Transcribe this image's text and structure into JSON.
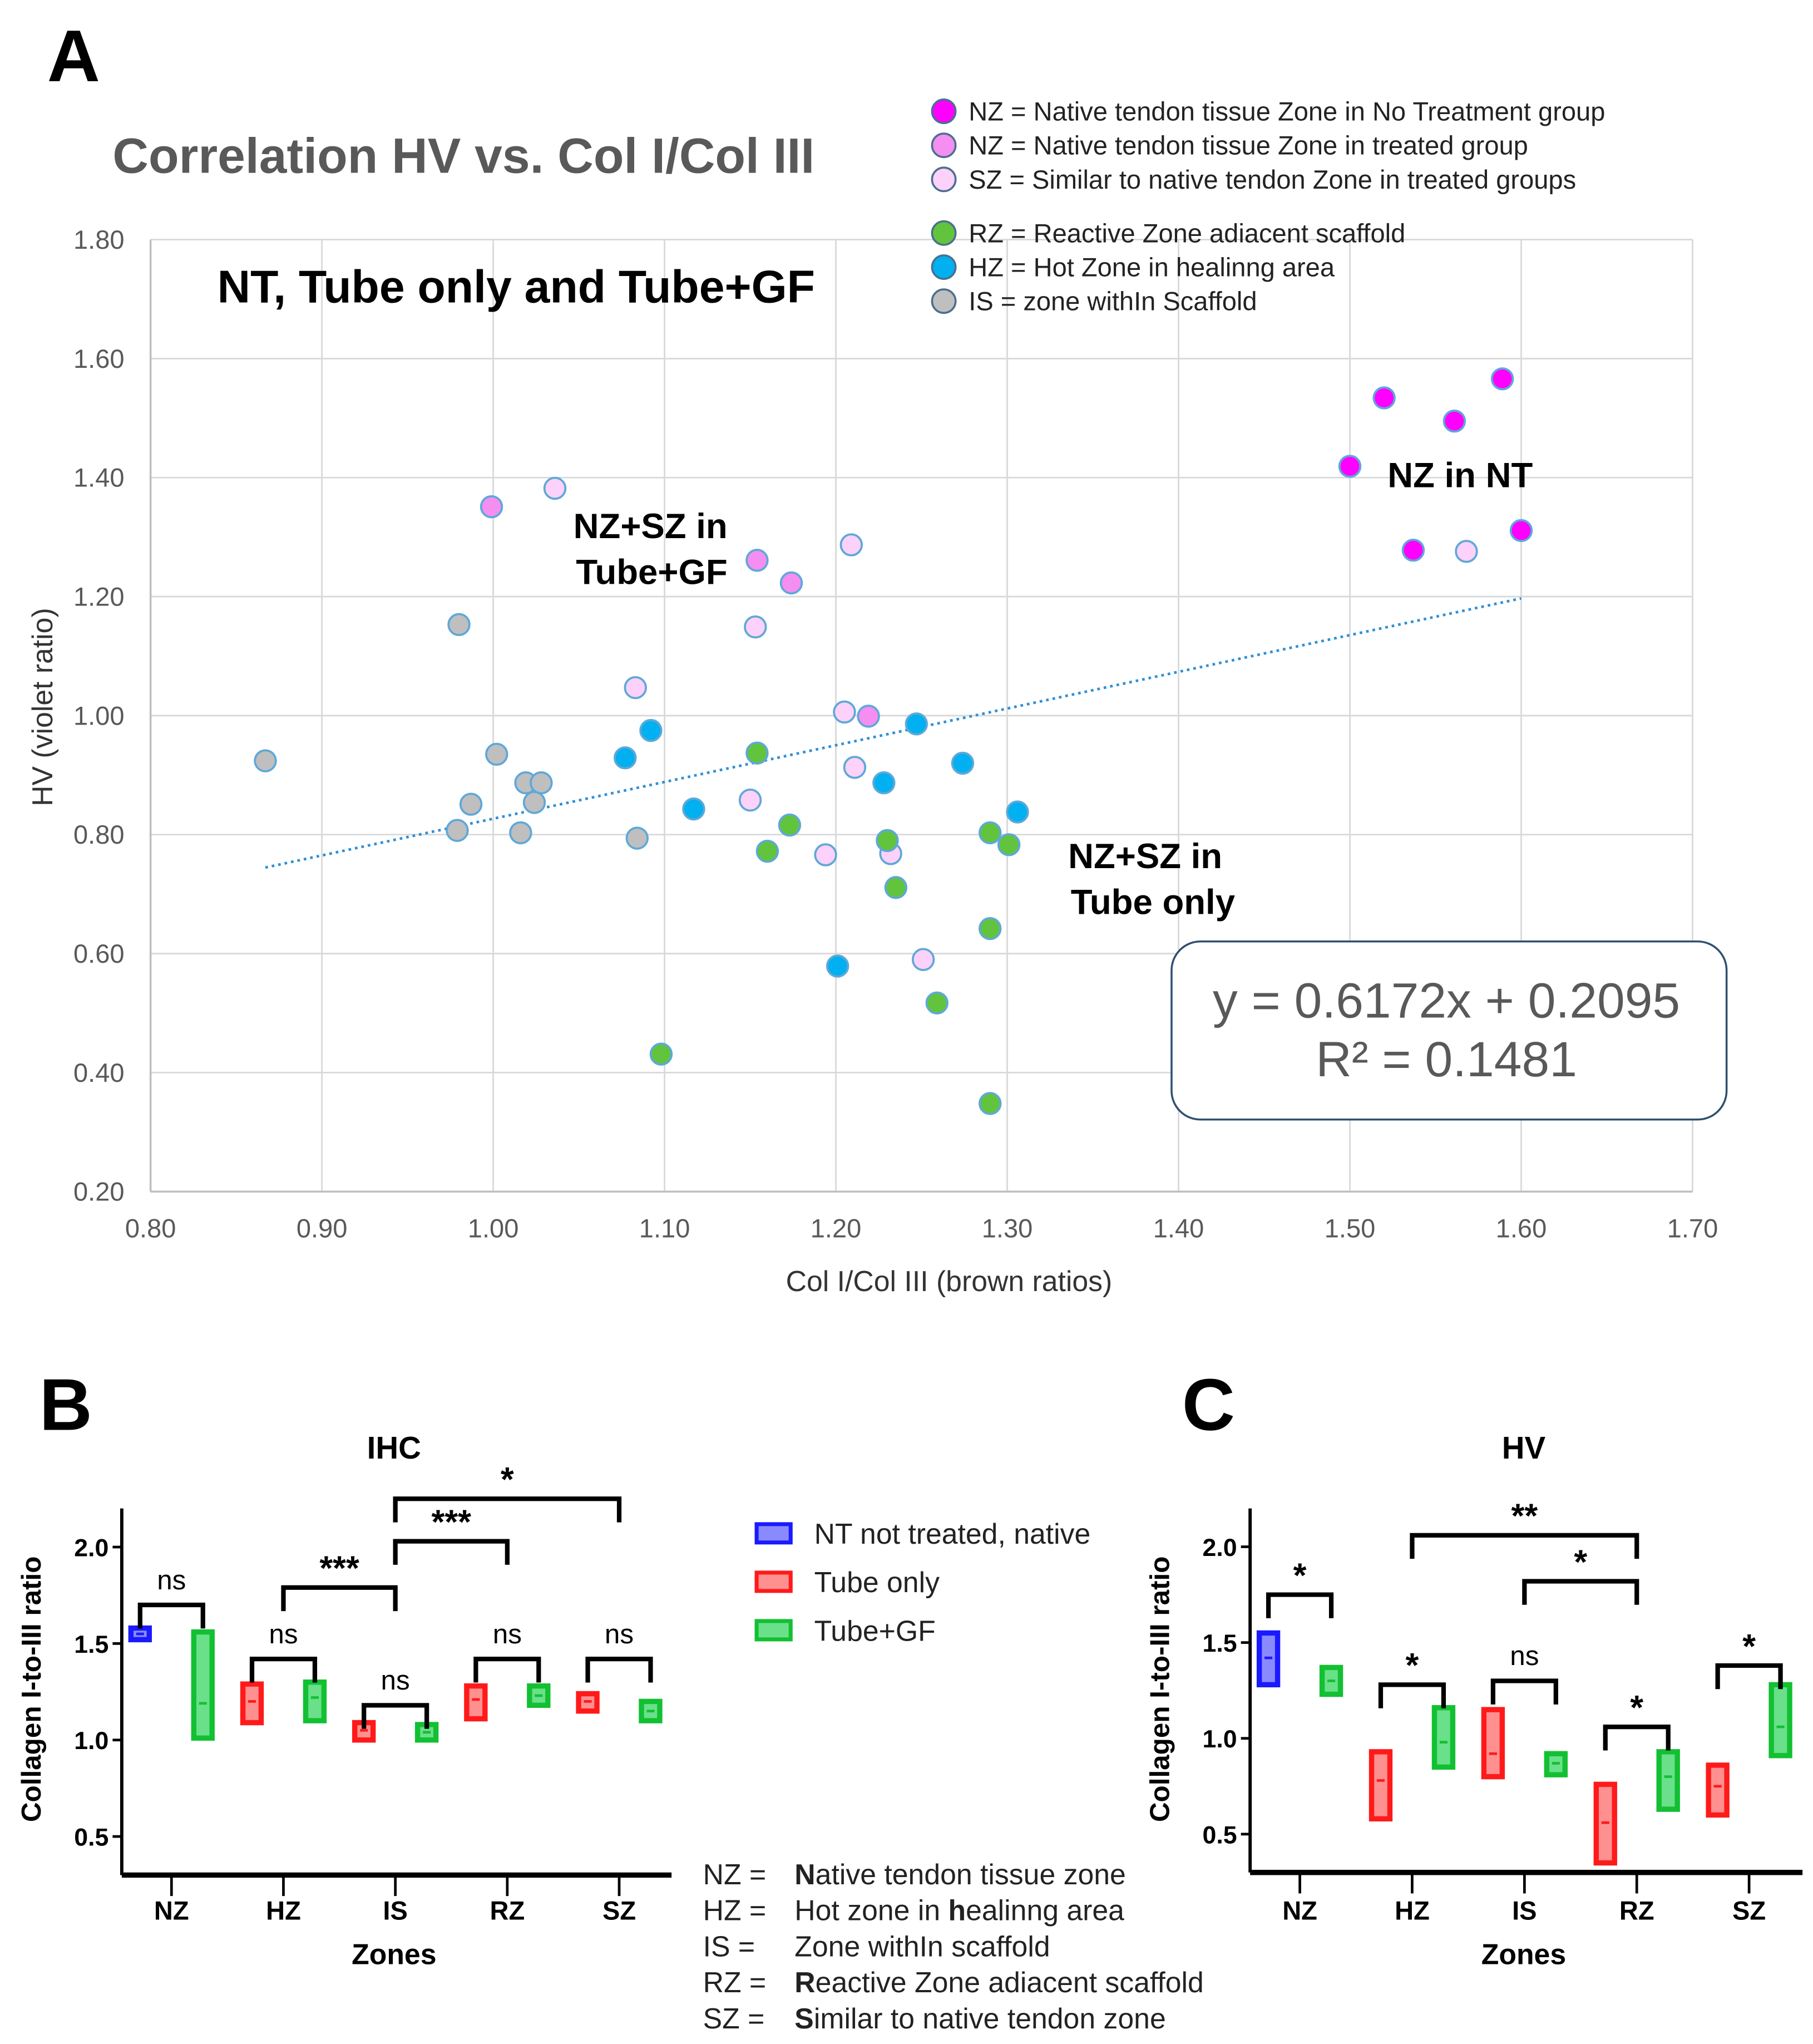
{
  "panel_letters": {
    "a": "A",
    "b": "B",
    "c": "C"
  },
  "chart_data": [
    {
      "type": "scatter",
      "title": "Correlation HV vs. Col I/Col III",
      "subtitle": "NT, Tube only and Tube+GF",
      "xlabel": "Col I/Col III (brown ratios)",
      "ylabel": "HV (violet ratio)",
      "xlim": [
        0.8,
        1.7
      ],
      "ylim": [
        0.2,
        1.8
      ],
      "xticks": [
        "0.80",
        "0.90",
        "1.00",
        "1.10",
        "1.20",
        "1.30",
        "1.40",
        "1.50",
        "1.60",
        "1.70"
      ],
      "yticks": [
        "0.20",
        "0.40",
        "0.60",
        "0.80",
        "1.00",
        "1.20",
        "1.40",
        "1.60",
        "1.80"
      ],
      "grid": true,
      "annotations": {
        "nt": "NZ in NT",
        "gf1": "NZ+SZ in",
        "gf2": "Tube+GF",
        "to1": "NZ+SZ in",
        "to2": "Tube only"
      },
      "trendline": {
        "slope": 0.6172,
        "intercept": 0.2095,
        "x_range": [
          0.867,
          1.6
        ],
        "equation": "y = 0.6172x + 0.2095",
        "r2": "R² = 0.1481",
        "color": "#2e8fd6"
      },
      "legend_position": "top-right",
      "series": [
        {
          "name": "NZ = Native tendon tissue Zone in No Treatment group",
          "color": "#ff00ff",
          "points": [
            [
              1.52,
              1.534
            ],
            [
              1.589,
              1.566
            ],
            [
              1.561,
              1.495
            ],
            [
              1.5,
              1.419
            ],
            [
              1.537,
              1.278
            ],
            [
              1.6,
              1.311
            ]
          ]
        },
        {
          "name": "NZ = Native tendon tissue Zone in treated group",
          "color": "#f48ef0",
          "points": [
            [
              0.999,
              1.351
            ],
            [
              1.154,
              1.261
            ],
            [
              1.174,
              1.223
            ],
            [
              1.219,
              0.999
            ]
          ]
        },
        {
          "name": "SZ = Similar to native tendon Zone in treated groups",
          "color": "#fcd2fa",
          "points": [
            [
              1.036,
              1.382
            ],
            [
              1.209,
              1.287
            ],
            [
              1.153,
              1.149
            ],
            [
              1.083,
              1.047
            ],
            [
              1.205,
              1.006
            ],
            [
              1.211,
              0.913
            ],
            [
              1.15,
              0.858
            ],
            [
              1.194,
              0.766
            ],
            [
              1.232,
              0.768
            ],
            [
              1.251,
              0.59
            ],
            [
              1.568,
              1.276
            ]
          ]
        },
        {
          "name": "RZ = Reactive Zone adiacent scaffold",
          "color": "#62c43c",
          "points": [
            [
              1.154,
              0.937
            ],
            [
              1.173,
              0.816
            ],
            [
              1.16,
              0.772
            ],
            [
              1.23,
              0.79
            ],
            [
              1.235,
              0.711
            ],
            [
              1.29,
              0.803
            ],
            [
              1.301,
              0.783
            ],
            [
              1.29,
              0.642
            ],
            [
              1.259,
              0.517
            ],
            [
              1.098,
              0.431
            ],
            [
              1.29,
              0.348
            ]
          ]
        },
        {
          "name": "HZ = Hot Zone in healinng area",
          "color": "#00b0f0",
          "points": [
            [
              1.092,
              0.975
            ],
            [
              1.077,
              0.929
            ],
            [
              1.117,
              0.843
            ],
            [
              1.247,
              0.986
            ],
            [
              1.228,
              0.887
            ],
            [
              1.274,
              0.92
            ],
            [
              1.306,
              0.838
            ],
            [
              1.201,
              0.579
            ]
          ]
        },
        {
          "name": "IS = zone withIn Scaffold",
          "color": "#bfbfbf",
          "points": [
            [
              0.867,
              0.924
            ],
            [
              0.98,
              1.153
            ],
            [
              1.002,
              0.935
            ],
            [
              0.987,
              0.851
            ],
            [
              0.979,
              0.807
            ],
            [
              1.019,
              0.887
            ],
            [
              1.028,
              0.887
            ],
            [
              1.024,
              0.854
            ],
            [
              1.016,
              0.803
            ],
            [
              1.084,
              0.794
            ]
          ]
        }
      ]
    },
    {
      "type": "bar",
      "subtype": "floating-bar",
      "title": "IHC",
      "xlabel": "Zones",
      "ylabel": "Collagen I-to-III ratio",
      "ylim": [
        0.3,
        2.2
      ],
      "yticks": [
        "0.5",
        "1.0",
        "1.5",
        "2.0"
      ],
      "ytick_values": [
        0.5,
        1.0,
        1.5,
        2.0
      ],
      "categories": [
        "NZ",
        "HZ",
        "IS",
        "RZ",
        "SZ"
      ],
      "bars": [
        {
          "cat": 0,
          "group": "nt",
          "min": 1.52,
          "max": 1.58,
          "median": 1.55
        },
        {
          "cat": 0,
          "group": "gf",
          "min": 1.01,
          "max": 1.56,
          "median": 1.19
        },
        {
          "cat": 1,
          "group": "tube",
          "min": 1.09,
          "max": 1.29,
          "median": 1.2
        },
        {
          "cat": 1,
          "group": "gf",
          "min": 1.1,
          "max": 1.3,
          "median": 1.22
        },
        {
          "cat": 2,
          "group": "tube",
          "min": 1.0,
          "max": 1.09,
          "median": 1.05
        },
        {
          "cat": 2,
          "group": "gf",
          "min": 1.0,
          "max": 1.08,
          "median": 1.04
        },
        {
          "cat": 3,
          "group": "tube",
          "min": 1.11,
          "max": 1.28,
          "median": 1.21
        },
        {
          "cat": 3,
          "group": "gf",
          "min": 1.18,
          "max": 1.28,
          "median": 1.23
        },
        {
          "cat": 4,
          "group": "tube",
          "min": 1.15,
          "max": 1.24,
          "median": 1.2
        },
        {
          "cat": 4,
          "group": "gf",
          "min": 1.1,
          "max": 1.2,
          "median": 1.15
        }
      ],
      "brackets": [
        {
          "from": [
            0,
            -1
          ],
          "to": [
            0,
            1
          ],
          "level": 1.7,
          "label": "ns"
        },
        {
          "from": [
            1,
            -1
          ],
          "to": [
            1,
            1
          ],
          "level": 1.42,
          "label": "ns"
        },
        {
          "from": [
            2,
            -1
          ],
          "to": [
            2,
            1
          ],
          "level": 1.18,
          "label": "ns"
        },
        {
          "from": [
            3,
            -1
          ],
          "to": [
            3,
            1
          ],
          "level": 1.42,
          "label": "ns"
        },
        {
          "from": [
            4,
            -1
          ],
          "to": [
            4,
            1
          ],
          "level": 1.42,
          "label": "ns"
        },
        {
          "from": [
            1,
            0
          ],
          "to": [
            2,
            0
          ],
          "level": 1.79,
          "label": "***"
        },
        {
          "from": [
            2,
            0
          ],
          "to": [
            3,
            0
          ],
          "level": 2.03,
          "label": "***"
        },
        {
          "from": [
            2,
            0
          ],
          "to": [
            4,
            0
          ],
          "level": 2.25,
          "label": "*"
        }
      ]
    },
    {
      "type": "bar",
      "subtype": "floating-bar",
      "title": "HV",
      "xlabel": "Zones",
      "ylabel": "Collagen I-to-III ratio",
      "ylim": [
        0.3,
        2.2
      ],
      "yticks": [
        "0.5",
        "1.0",
        "1.5",
        "2.0"
      ],
      "ytick_values": [
        0.5,
        1.0,
        1.5,
        2.0
      ],
      "categories": [
        "NZ",
        "HZ",
        "IS",
        "RZ",
        "SZ"
      ],
      "bars": [
        {
          "cat": 0,
          "group": "nt",
          "min": 1.28,
          "max": 1.55,
          "median": 1.42
        },
        {
          "cat": 0,
          "group": "gf",
          "min": 1.23,
          "max": 1.37,
          "median": 1.3
        },
        {
          "cat": 1,
          "group": "tube",
          "min": 0.58,
          "max": 0.93,
          "median": 0.78
        },
        {
          "cat": 1,
          "group": "gf",
          "min": 0.85,
          "max": 1.16,
          "median": 0.98
        },
        {
          "cat": 2,
          "group": "tube",
          "min": 0.8,
          "max": 1.15,
          "median": 0.92
        },
        {
          "cat": 2,
          "group": "gf",
          "min": 0.81,
          "max": 0.92,
          "median": 0.87
        },
        {
          "cat": 3,
          "group": "tube",
          "min": 0.35,
          "max": 0.76,
          "median": 0.56
        },
        {
          "cat": 3,
          "group": "gf",
          "min": 0.63,
          "max": 0.93,
          "median": 0.8
        },
        {
          "cat": 4,
          "group": "tube",
          "min": 0.6,
          "max": 0.86,
          "median": 0.75
        },
        {
          "cat": 4,
          "group": "gf",
          "min": 0.91,
          "max": 1.28,
          "median": 1.06
        }
      ],
      "brackets": [
        {
          "from": [
            0,
            -1
          ],
          "to": [
            0,
            1
          ],
          "level": 1.75,
          "label": "*"
        },
        {
          "from": [
            1,
            -1
          ],
          "to": [
            1,
            1
          ],
          "level": 1.28,
          "label": "*"
        },
        {
          "from": [
            2,
            -1
          ],
          "to": [
            2,
            1
          ],
          "level": 1.3,
          "label": "ns"
        },
        {
          "from": [
            3,
            -1
          ],
          "to": [
            3,
            1
          ],
          "level": 1.06,
          "label": "*"
        },
        {
          "from": [
            4,
            -1
          ],
          "to": [
            4,
            1
          ],
          "level": 1.38,
          "label": "*"
        },
        {
          "from": [
            1,
            0
          ],
          "to": [
            3,
            0
          ],
          "level": 2.06,
          "label": "**"
        },
        {
          "from": [
            2,
            0
          ],
          "to": [
            3,
            0
          ],
          "level": 1.82,
          "label": "*"
        }
      ]
    }
  ],
  "bar_legend": [
    {
      "key": "nt",
      "label": "NT not treated, native",
      "color": "#1a1aff",
      "inner": "#8a8aff"
    },
    {
      "key": "tube",
      "label": "Tube only",
      "color": "#ff1a1a",
      "inner": "#ff9090"
    },
    {
      "key": "gf",
      "label": "Tube+GF",
      "color": "#12c032",
      "inner": "#6ae08a"
    }
  ],
  "zone_key": [
    {
      "abbr": "NZ =",
      "first": "N",
      "rest": "ative tendon tissue zone"
    },
    {
      "abbr": "HZ =",
      "first": "",
      "rest": "Hot zone in ",
      "bold": "h",
      "tail": "ealinng area"
    },
    {
      "abbr": "IS =",
      "first": "",
      "rest": "Zone withIn scaffold"
    },
    {
      "abbr": "RZ =",
      "first": "R",
      "rest": "eactive Zone adiacent scaffold"
    },
    {
      "abbr": "SZ =",
      "first": "S",
      "rest": "imilar to native tendon zone"
    }
  ]
}
